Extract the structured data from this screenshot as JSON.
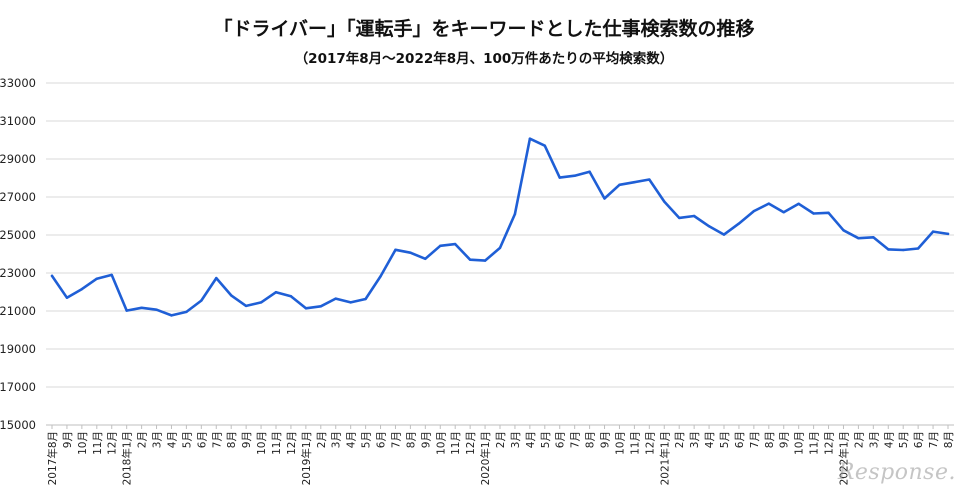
{
  "chart_data": {
    "type": "line",
    "title": "「ドライバー」「運転手」をキーワードとした仕事検索数の推移",
    "subtitle": "（2017年8月～2022年8月、100万件あたりの平均検索数）",
    "ylim": [
      15000,
      33000
    ],
    "yticks": [
      "15000",
      "17000",
      "19000",
      "21000",
      "23000",
      "25000",
      "27000",
      "29000",
      "31000",
      "33000"
    ],
    "grid": true,
    "line_color": "#1f5fd6",
    "categories": [
      "2017年8月",
      "9月",
      "10月",
      "11月",
      "12月",
      "2018年1月",
      "2月",
      "3月",
      "4月",
      "5月",
      "6月",
      "7月",
      "8月",
      "9月",
      "10月",
      "11月",
      "12月",
      "2019年1月",
      "2月",
      "3月",
      "4月",
      "5月",
      "6月",
      "7月",
      "8月",
      "9月",
      "10月",
      "11月",
      "12月",
      "2020年1月",
      "2月",
      "3月",
      "4月",
      "5月",
      "6月",
      "7月",
      "8月",
      "9月",
      "10月",
      "11月",
      "12月",
      "2021年1月",
      "2月",
      "3月",
      "4月",
      "5月",
      "6月",
      "7月",
      "8月",
      "9月",
      "10月",
      "11月",
      "12月",
      "2022年1月",
      "2月",
      "3月",
      "4月",
      "5月",
      "6月",
      "7月",
      "8月"
    ],
    "series": [
      {
        "values": [
          22850,
          21700,
          22150,
          22700,
          22900,
          21020,
          21170,
          21070,
          20770,
          20950,
          21550,
          22730,
          21820,
          21270,
          21450,
          21990,
          21780,
          21140,
          21250,
          21650,
          21450,
          21630,
          22820,
          24220,
          24070,
          23750,
          24430,
          24520,
          23700,
          23650,
          24320,
          26100,
          30070,
          29700,
          28020,
          28120,
          28330,
          26920,
          27640,
          27780,
          27920,
          26760,
          25900,
          26000,
          25460,
          25020,
          25600,
          26260,
          26650,
          26200,
          26640,
          26130,
          26170,
          25250,
          24830,
          24880,
          24240,
          24210,
          24290,
          25180,
          25060
        ]
      }
    ]
  },
  "watermark": "Response."
}
